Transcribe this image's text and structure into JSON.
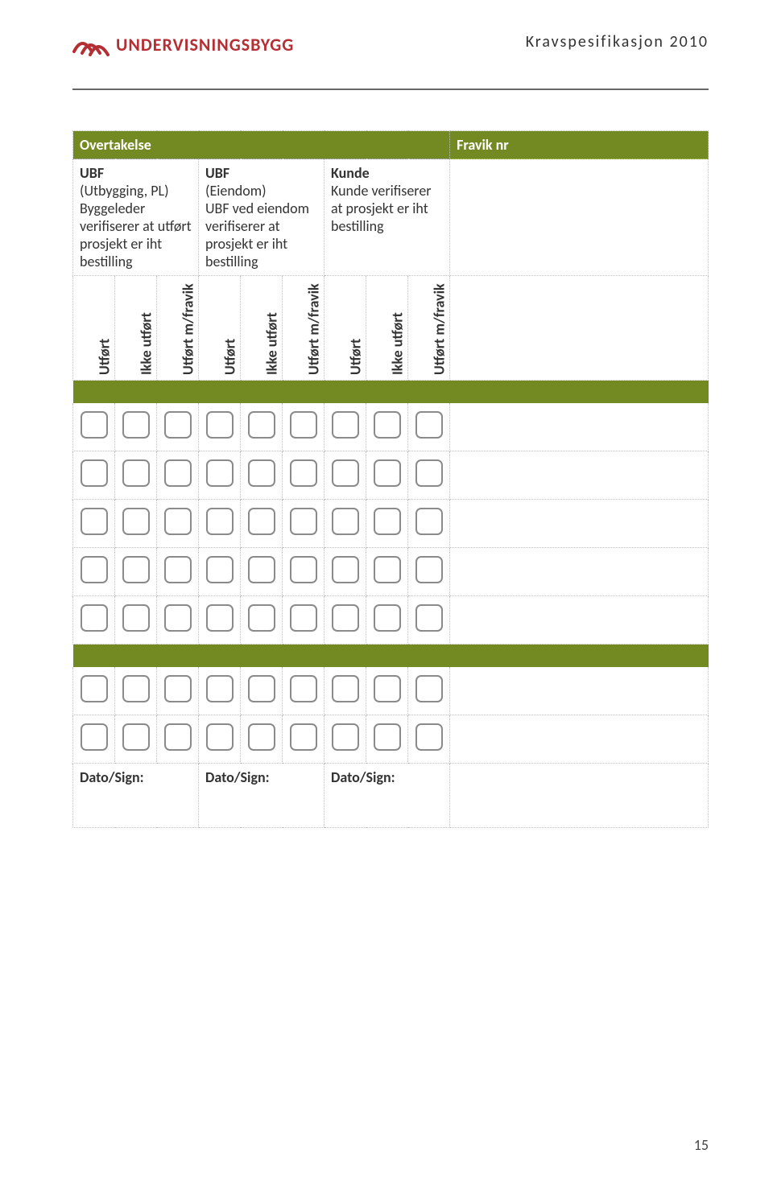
{
  "header": {
    "brand": "UNDERVISNINGSBYGG",
    "doc_title": "Kravspesifikasjon 2010",
    "page_number": "15"
  },
  "table": {
    "title": "Overtakelse",
    "fravik": "Fravik nr",
    "groups": [
      {
        "head_bold": "UBF",
        "head_sub": "(Utbygging, PL)",
        "desc": "Byggeleder verifiserer at utført prosjekt er iht bestilling"
      },
      {
        "head_bold": "UBF",
        "head_sub": "(Eiendom)",
        "desc": "UBF ved eiendom verifiserer at prosjekt er iht bestilling"
      },
      {
        "head_bold": "Kunde",
        "head_sub": "",
        "desc": "Kunde verifiserer at prosjekt er iht bestilling"
      }
    ],
    "subcols": [
      "Utført",
      "Ikke utført",
      "Utført m/fravik"
    ],
    "sign_label": "Dato/Sign:",
    "section1_rows": 5,
    "section2_rows": 2,
    "checkbox_border_color": "#8a8a8a",
    "olive_color": "#728a21",
    "brand_color": "#b52e33"
  }
}
